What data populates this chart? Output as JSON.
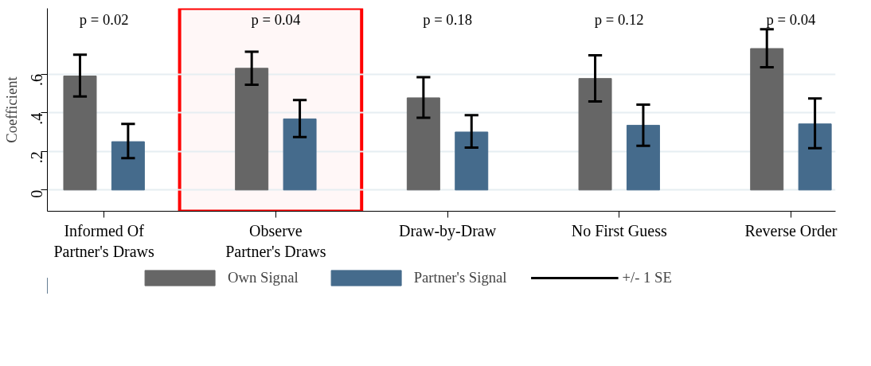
{
  "chart_data": {
    "type": "bar",
    "ylabel": "Coefficient",
    "categories": [
      "Informed Of\nPartner's Draws",
      "Observe\nPartner's Draws",
      "Draw-by-Draw",
      "No First Guess",
      "Reverse Order"
    ],
    "series": [
      {
        "name": "Own Signal",
        "color": "#666666",
        "values": [
          0.59,
          0.63,
          0.477,
          0.577,
          0.732
        ],
        "errors": [
          [
            0.484,
            0.7
          ],
          [
            0.545,
            0.716
          ],
          [
            0.374,
            0.584
          ],
          [
            0.458,
            0.697
          ],
          [
            0.635,
            0.832
          ]
        ]
      },
      {
        "name": "Partner's Signal",
        "color": "#456b8c",
        "values": [
          0.25,
          0.368,
          0.3,
          0.335,
          0.342
        ],
        "errors": [
          [
            0.165,
            0.342
          ],
          [
            0.274,
            0.465
          ],
          [
            0.219,
            0.387
          ],
          [
            0.229,
            0.442
          ],
          [
            0.216,
            0.474
          ]
        ]
      }
    ],
    "ylim": [
      -0.11,
      0.94
    ],
    "yticks": [
      0,
      {
        "value": 0.2,
        "label": ".2"
      },
      {
        "value": 0.4,
        "label": ".4"
      },
      {
        "value": 0.6,
        "label": ".6"
      }
    ],
    "grid": "y",
    "legend": "bottom",
    "bands": [
      {
        "axis": "x",
        "from": "Observe\nPartner's Draws",
        "to": "Observe\nPartner's Draws",
        "color": "#ff0000"
      }
    ],
    "annotations": [
      "p = 0.02",
      "p = 0.04",
      "p = 0.18",
      "p = 0.12",
      "p = 0.04",
      "+/- 1 SE"
    ]
  }
}
